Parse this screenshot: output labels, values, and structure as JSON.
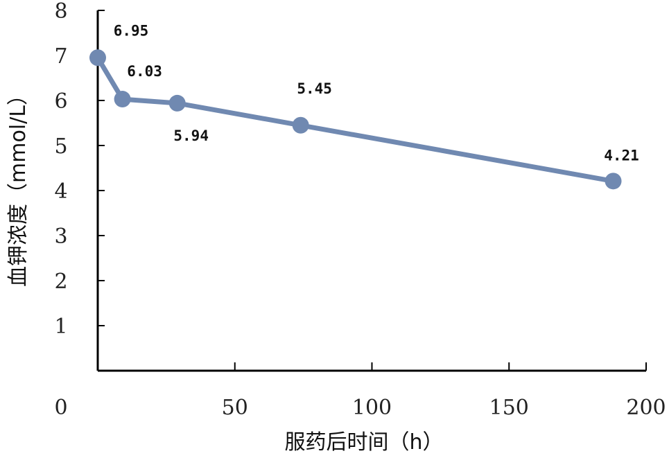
{
  "chart_data": {
    "type": "line",
    "title": "",
    "xlabel": "服药后时间（h）",
    "ylabel": "血钾浓度（mmol/L）",
    "xlim": [
      0,
      200
    ],
    "ylim": [
      0,
      8
    ],
    "x_ticks": [
      0,
      50,
      100,
      150,
      200
    ],
    "y_ticks": [
      1,
      2,
      3,
      4,
      5,
      6,
      7,
      8
    ],
    "grid": false,
    "series": [
      {
        "color": "#7089b1",
        "x": [
          0,
          9,
          29,
          74,
          188
        ],
        "y": [
          6.95,
          6.03,
          5.94,
          5.45,
          4.21
        ],
        "labels": [
          "6.95",
          "6.03",
          "5.94",
          "5.45",
          "4.21"
        ]
      }
    ]
  }
}
